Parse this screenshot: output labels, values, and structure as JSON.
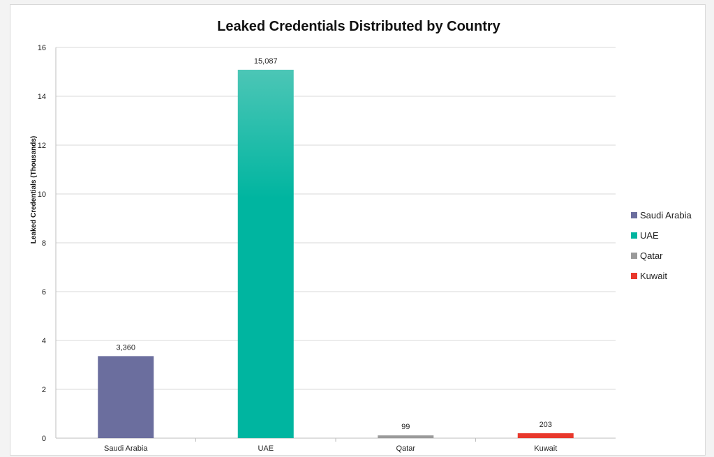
{
  "chart_data": {
    "type": "bar",
    "title": "Leaked Credentials Distributed by Country",
    "xlabel": "",
    "ylabel": "Leaked Credentials (Thousands)",
    "ylim": [
      0,
      16
    ],
    "yticks": [
      0,
      2,
      4,
      6,
      8,
      10,
      12,
      14,
      16
    ],
    "categories": [
      "Saudi Arabia",
      "UAE",
      "Qatar",
      "Kuwait"
    ],
    "values": [
      3.36,
      15.087,
      0.099,
      0.203
    ],
    "data_labels": [
      "3,360",
      "15,087",
      "99",
      "203"
    ],
    "colors": [
      "#6b6e9e",
      "#00b5a0",
      "#9a9a9a",
      "#e8382c"
    ],
    "grid": true,
    "legend": {
      "placement": "right",
      "entries": [
        "Saudi Arabia",
        "UAE",
        "Qatar",
        "Kuwait"
      ]
    }
  }
}
